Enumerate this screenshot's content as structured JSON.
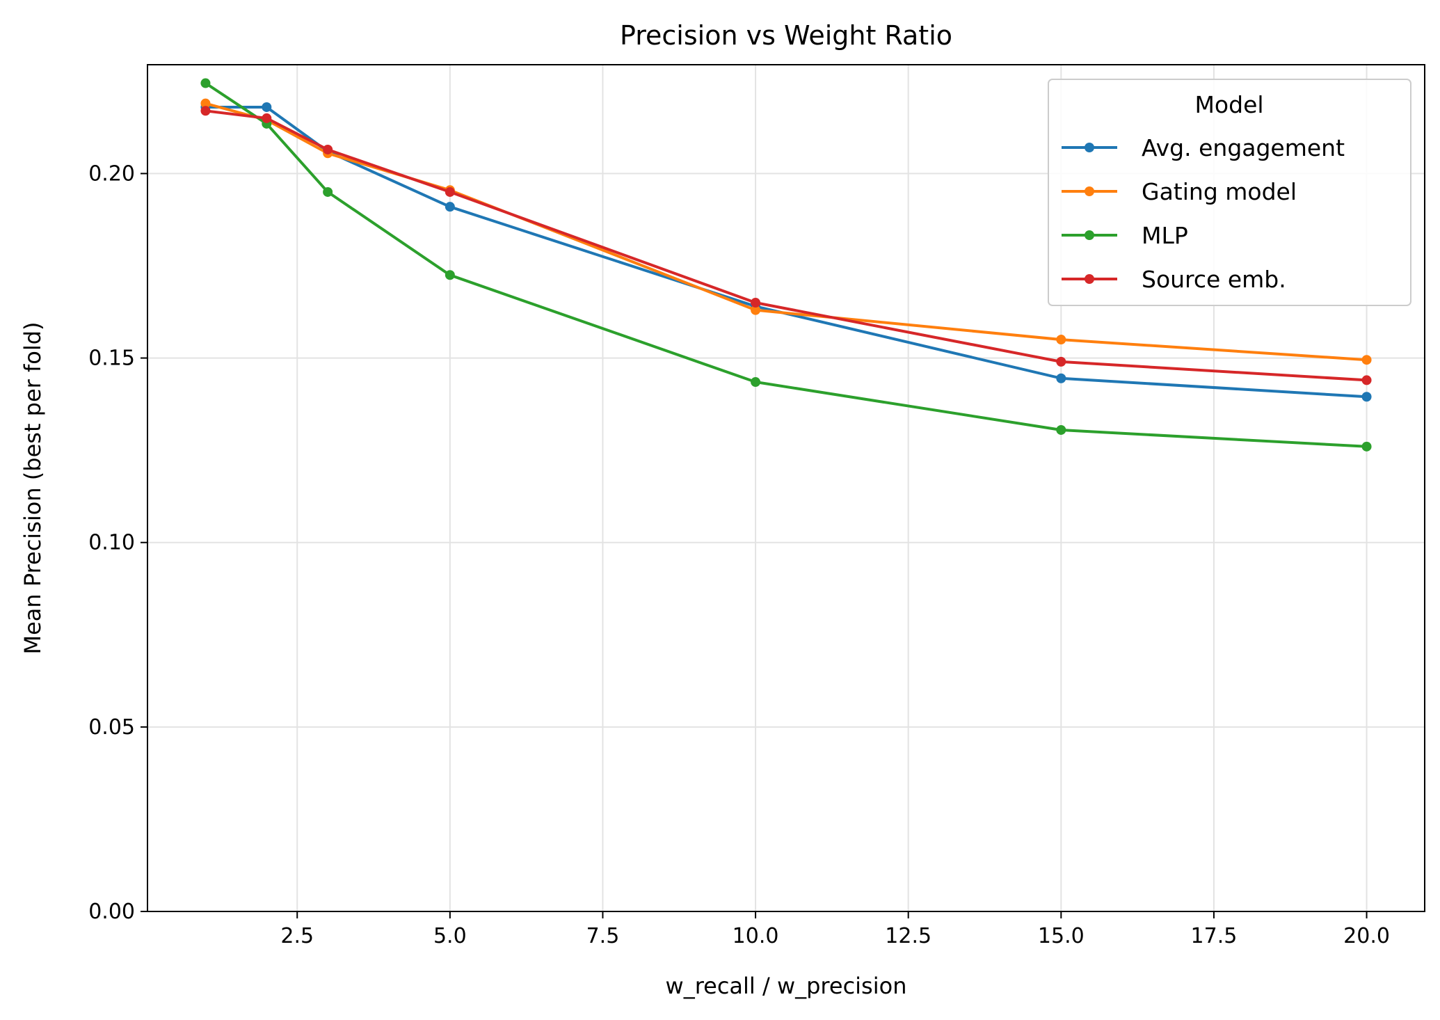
{
  "chart_data": {
    "type": "line",
    "title": "Precision vs Weight Ratio",
    "xlabel": "w_recall / w_precision",
    "ylabel": "Mean Precision (best per fold)",
    "xlim": [
      0.05,
      20.95
    ],
    "ylim": [
      0.0,
      0.2295
    ],
    "xticks": [
      2.5,
      5.0,
      7.5,
      10.0,
      12.5,
      15.0,
      17.5,
      20.0
    ],
    "xtick_labels": [
      "2.5",
      "5.0",
      "7.5",
      "10.0",
      "12.5",
      "15.0",
      "17.5",
      "20.0"
    ],
    "yticks": [
      0.0,
      0.05,
      0.1,
      0.15,
      0.2
    ],
    "ytick_labels": [
      "0.00",
      "0.05",
      "0.10",
      "0.15",
      "0.20"
    ],
    "grid": true,
    "legend": {
      "title": "Model",
      "position": "top-right"
    },
    "x": [
      1,
      2,
      3,
      5,
      10,
      15,
      20
    ],
    "series": [
      {
        "name": "Avg. engagement",
        "color": "#1f77b4",
        "values": [
          0.218,
          0.218,
          0.206,
          0.191,
          0.164,
          0.1445,
          0.1395
        ]
      },
      {
        "name": "Gating model",
        "color": "#ff7f0e",
        "values": [
          0.219,
          0.2145,
          0.2055,
          0.1955,
          0.163,
          0.155,
          0.1495
        ]
      },
      {
        "name": "MLP",
        "color": "#2ca02c",
        "values": [
          0.2245,
          0.2135,
          0.195,
          0.1725,
          0.1435,
          0.1305,
          0.126
        ]
      },
      {
        "name": "Source emb.",
        "color": "#d62728",
        "values": [
          0.217,
          0.215,
          0.2065,
          0.195,
          0.165,
          0.149,
          0.144
        ]
      }
    ]
  }
}
